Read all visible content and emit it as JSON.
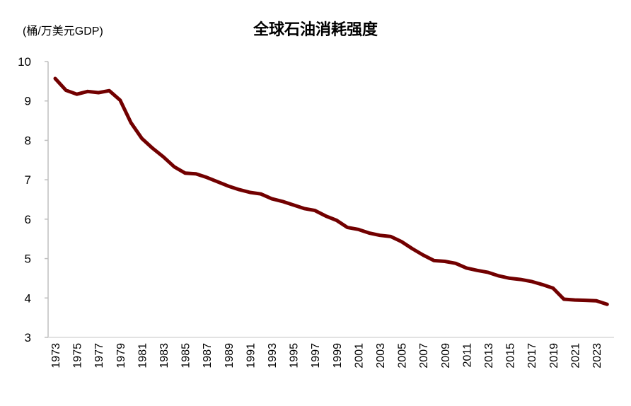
{
  "chart_data": {
    "type": "line",
    "title": "全球石油消耗强度",
    "ylabel": "(桶/万美元GDP)",
    "xlabel": "",
    "ylim": [
      3,
      10
    ],
    "yticks": [
      "3",
      "4",
      "5",
      "6",
      "7",
      "8",
      "9",
      "10"
    ],
    "grid": false,
    "line_color": "#720000",
    "x": [
      1973,
      1974,
      1975,
      1976,
      1977,
      1978,
      1979,
      1980,
      1981,
      1982,
      1983,
      1984,
      1985,
      1986,
      1987,
      1988,
      1989,
      1990,
      1991,
      1992,
      1993,
      1994,
      1995,
      1996,
      1997,
      1998,
      1999,
      2000,
      2001,
      2002,
      2003,
      2004,
      2005,
      2006,
      2007,
      2008,
      2009,
      2010,
      2011,
      2012,
      2013,
      2014,
      2015,
      2016,
      2017,
      2018,
      2019,
      2020,
      2021,
      2022,
      2023,
      2024
    ],
    "xticks": [
      "1973",
      "1975",
      "1977",
      "1979",
      "1981",
      "1983",
      "1985",
      "1987",
      "1989",
      "1991",
      "1993",
      "1995",
      "1997",
      "1999",
      "2001",
      "2003",
      "2005",
      "2007",
      "2009",
      "2011",
      "2013",
      "2015",
      "2017",
      "2019",
      "2021",
      "2023"
    ],
    "series": [
      {
        "values": [
          9.57,
          9.27,
          9.17,
          9.24,
          9.21,
          9.26,
          9.02,
          8.45,
          8.05,
          7.8,
          7.58,
          7.33,
          7.17,
          7.15,
          7.06,
          6.95,
          6.84,
          6.75,
          6.68,
          6.64,
          6.52,
          6.45,
          6.36,
          6.27,
          6.22,
          6.08,
          5.97,
          5.79,
          5.74,
          5.65,
          5.59,
          5.56,
          5.43,
          5.25,
          5.09,
          4.95,
          4.93,
          4.88,
          4.76,
          4.7,
          4.65,
          4.56,
          4.5,
          4.47,
          4.42,
          4.34,
          4.25,
          3.97,
          3.95,
          3.94,
          3.93,
          3.84
        ]
      }
    ]
  }
}
